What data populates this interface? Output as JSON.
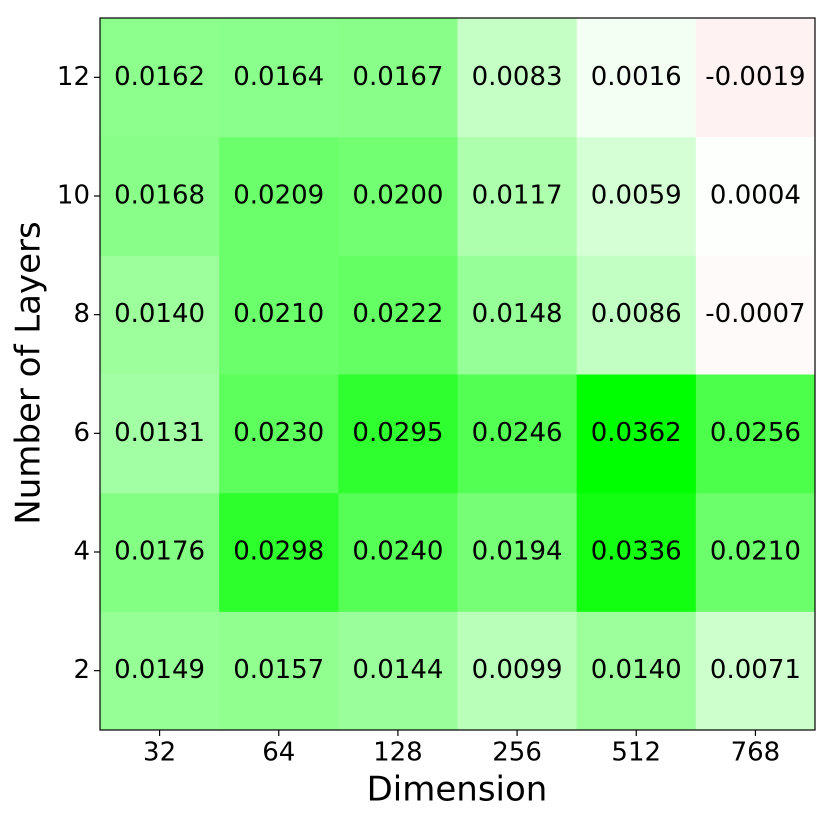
{
  "chart_data": {
    "type": "heatmap",
    "x_label": "Dimension",
    "y_label": "Number of Layers",
    "x_categories": [
      "32",
      "64",
      "128",
      "256",
      "512",
      "768"
    ],
    "y_categories": [
      "2",
      "4",
      "6",
      "8",
      "10",
      "12"
    ],
    "values": [
      [
        0.0149,
        0.0157,
        0.0144,
        0.0099,
        0.014,
        0.0071
      ],
      [
        0.0176,
        0.0298,
        0.024,
        0.0194,
        0.0336,
        0.021
      ],
      [
        0.0131,
        0.023,
        0.0295,
        0.0246,
        0.0362,
        0.0256
      ],
      [
        0.014,
        0.021,
        0.0222,
        0.0148,
        0.0086,
        -0.0007
      ],
      [
        0.0168,
        0.0209,
        0.02,
        0.0117,
        0.0059,
        0.0004
      ],
      [
        0.0162,
        0.0164,
        0.0167,
        0.0083,
        0.0016,
        -0.0019
      ]
    ],
    "value_labels": [
      [
        "0.0149",
        "0.0157",
        "0.0144",
        "0.0099",
        "0.0140",
        "0.0071"
      ],
      [
        "0.0176",
        "0.0298",
        "0.0240",
        "0.0194",
        "0.0336",
        "0.0210"
      ],
      [
        "0.0131",
        "0.0230",
        "0.0295",
        "0.0246",
        "0.0362",
        "0.0256"
      ],
      [
        "0.0140",
        "0.0210",
        "0.0222",
        "0.0148",
        "0.0086",
        "-0.0007"
      ],
      [
        "0.0168",
        "0.0209",
        "0.0200",
        "0.0117",
        "0.0059",
        "0.0004"
      ],
      [
        "0.0162",
        "0.0164",
        "0.0167",
        "0.0083",
        "0.0016",
        "-0.0019"
      ]
    ],
    "colors": [
      "#ff0000",
      "#ffffff",
      "#00ff00"
    ]
  }
}
